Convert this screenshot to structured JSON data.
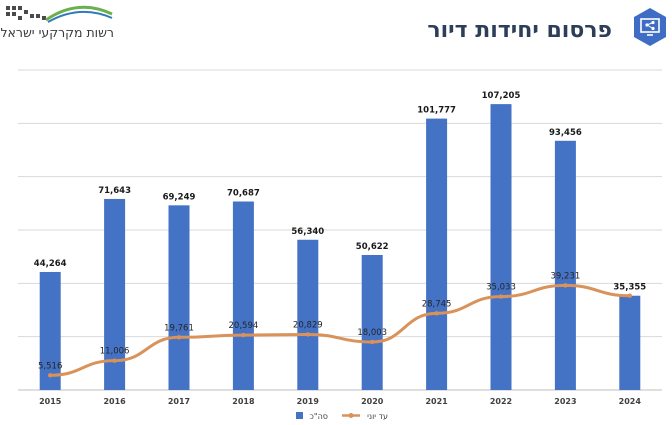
{
  "header": {
    "title": "פרסום יחידות דיור",
    "logo_text": "רשות מקרקעי ישראל"
  },
  "colors": {
    "bar": "#4472c4",
    "line": "#d9925a",
    "title": "#2d3e58",
    "grid": "#d9d9d9",
    "label": "#1a1a1a"
  },
  "chart_data": {
    "type": "bar",
    "title": "פרסום יחידות דיור",
    "xlabel": "",
    "ylabel": "",
    "categories": [
      "2015",
      "2016",
      "2017",
      "2018",
      "2019",
      "2020",
      "2021",
      "2022",
      "2023",
      "2024"
    ],
    "ylim": [
      0,
      120000
    ],
    "grid": true,
    "legend_position": "bottom-center",
    "series": [
      {
        "name": "סה\"כ",
        "type": "bar",
        "values": [
          44264,
          71643,
          69249,
          70687,
          56340,
          50622,
          101777,
          107205,
          93456,
          35355
        ],
        "labels": [
          "44,264",
          "71,643",
          "69,249",
          "70,687",
          "56,340",
          "50,622",
          "101,777",
          "107,205",
          "93,456",
          "35,355"
        ]
      },
      {
        "name": "עד יוני",
        "type": "line",
        "values": [
          5516,
          11006,
          19761,
          20594,
          20829,
          18003,
          28745,
          35033,
          39231,
          35355
        ],
        "labels": [
          "5,516",
          "11,006",
          "19,761",
          "20,594",
          "20,829",
          "18,003",
          "28,745",
          "35,033",
          "39,231",
          "35,355"
        ]
      }
    ]
  }
}
